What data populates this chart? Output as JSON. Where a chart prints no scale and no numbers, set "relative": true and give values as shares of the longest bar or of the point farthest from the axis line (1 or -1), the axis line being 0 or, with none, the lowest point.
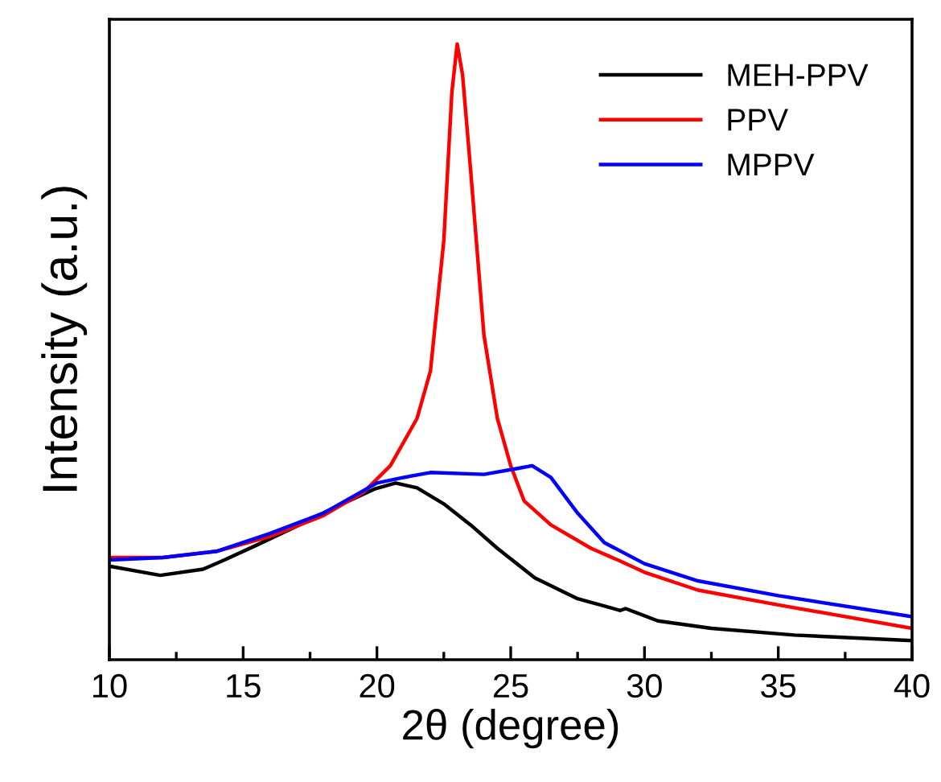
{
  "chart_data": {
    "type": "line",
    "relative": true,
    "xlabel": "2θ (degree)",
    "ylabel": "Intensity (a.u.)",
    "xlim": [
      10,
      40
    ],
    "xticks": [
      10,
      {
        "value": 12.5,
        "label": null
      },
      15,
      {
        "value": 17.5,
        "label": null
      },
      20,
      {
        "value": 22.5,
        "label": null
      },
      25,
      {
        "value": 27.5,
        "label": null
      },
      30,
      {
        "value": 32.5,
        "label": null
      },
      35,
      {
        "value": 37.5,
        "label": null
      },
      40
    ],
    "legend": "top right",
    "grid": false,
    "marker": "none",
    "line_style": "solid",
    "series": [
      {
        "name": "MEH-PPV",
        "color": "#000000",
        "x": [
          10,
          11.9,
          13.5,
          14.3,
          15.5,
          17.1,
          18.7,
          19.9,
          20.7,
          21.5,
          22.5,
          23.5,
          24.5,
          25.9,
          27.5,
          29.1,
          29.3,
          30.5,
          32.5,
          35.6,
          40
        ],
        "values": [
          0.152,
          0.137,
          0.147,
          0.162,
          0.186,
          0.219,
          0.253,
          0.277,
          0.287,
          0.279,
          0.253,
          0.219,
          0.181,
          0.133,
          0.099,
          0.08,
          0.083,
          0.063,
          0.051,
          0.04,
          0.031
        ]
      },
      {
        "name": "PPV",
        "color": "#ff0000",
        "x": [
          10,
          12,
          14,
          16,
          18,
          19.5,
          20.5,
          21.5,
          22,
          22.5,
          22.8,
          23,
          23.2,
          23.5,
          24,
          24.5,
          25,
          25.5,
          26.5,
          28,
          29,
          30,
          32,
          35,
          40
        ],
        "values": [
          0.166,
          0.166,
          0.176,
          0.2,
          0.234,
          0.272,
          0.315,
          0.392,
          0.469,
          0.681,
          0.921,
          1.0,
          0.95,
          0.796,
          0.527,
          0.392,
          0.315,
          0.258,
          0.219,
          0.181,
          0.162,
          0.142,
          0.113,
          0.089,
          0.051
        ]
      },
      {
        "name": "MPPV",
        "color": "#0000ff",
        "x": [
          10,
          12,
          14,
          16,
          18,
          20,
          21,
          22,
          24,
          25.3,
          25.8,
          26.5,
          27.5,
          28.5,
          30,
          32,
          35,
          40
        ],
        "values": [
          0.162,
          0.166,
          0.176,
          0.205,
          0.238,
          0.287,
          0.296,
          0.304,
          0.301,
          0.311,
          0.315,
          0.296,
          0.238,
          0.19,
          0.156,
          0.128,
          0.104,
          0.07
        ]
      }
    ]
  }
}
